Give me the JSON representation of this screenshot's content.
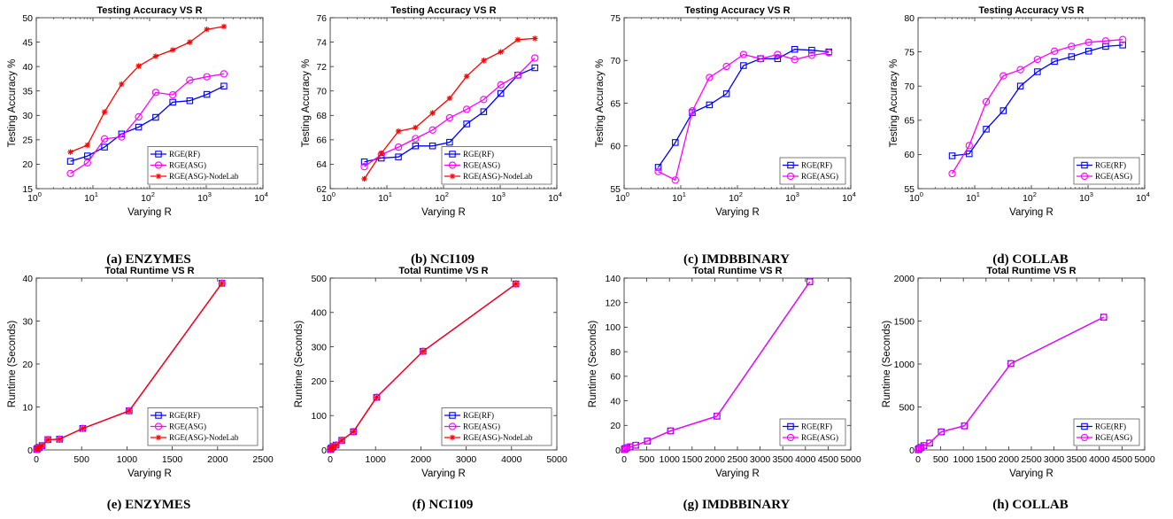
{
  "colors": {
    "rf": "#0000ff",
    "asg": "#ff00ff",
    "nodelab": "#ff0000",
    "axis": "#262626"
  },
  "chart_data": [
    {
      "type": "line",
      "title": "Testing Accuracy VS R",
      "xlabel": "Varying R",
      "ylabel": "Testing Accuracy %",
      "xscale": "log",
      "xlim": [
        1,
        10000
      ],
      "ylim": [
        15,
        50
      ],
      "xticks": [
        1,
        10,
        100,
        1000,
        10000
      ],
      "xtick_labels": [
        "10^0",
        "10^1",
        "10^2",
        "10^3",
        "10^4"
      ],
      "yticks": [
        15,
        20,
        25,
        30,
        35,
        40,
        45,
        50
      ],
      "ytick_labels": [
        "15",
        "20",
        "25",
        "30",
        "35",
        "40",
        "45",
        "50"
      ],
      "legend": "bottom-right",
      "caption": "(a) ENZYMES",
      "series": [
        {
          "name": "RGE(RF)",
          "marker": "square",
          "color": "#0000ff",
          "x": [
            4,
            8,
            16,
            32,
            64,
            128,
            256,
            512,
            1024,
            2048
          ],
          "y": [
            20.6,
            21.7,
            23.5,
            26.2,
            27.6,
            29.6,
            32.7,
            33.0,
            34.3,
            36.0
          ]
        },
        {
          "name": "RGE(ASG)",
          "marker": "circle",
          "color": "#ff00ff",
          "x": [
            4,
            8,
            16,
            32,
            64,
            128,
            256,
            512,
            1024,
            2048
          ],
          "y": [
            18.1,
            20.3,
            25.2,
            25.6,
            29.7,
            34.7,
            34.2,
            37.2,
            37.9,
            38.5
          ]
        },
        {
          "name": "RGE(ASG)-NodeLab",
          "marker": "star",
          "color": "#ff0000",
          "x": [
            4,
            8,
            16,
            32,
            64,
            128,
            256,
            512,
            1024,
            2048
          ],
          "y": [
            22.5,
            23.9,
            30.7,
            36.4,
            40.1,
            42.1,
            43.4,
            45.0,
            47.6,
            48.2
          ]
        }
      ]
    },
    {
      "type": "line",
      "title": "Testing Accuracy VS R",
      "xlabel": "Varying R",
      "ylabel": "Testing Accuracy %",
      "xscale": "log",
      "xlim": [
        1,
        10000
      ],
      "ylim": [
        62,
        76
      ],
      "xticks": [
        1,
        10,
        100,
        1000,
        10000
      ],
      "xtick_labels": [
        "10^0",
        "10^1",
        "10^2",
        "10^3",
        "10^4"
      ],
      "yticks": [
        62,
        64,
        66,
        68,
        70,
        72,
        74,
        76
      ],
      "ytick_labels": [
        "62",
        "64",
        "66",
        "68",
        "70",
        "72",
        "74",
        "76"
      ],
      "legend": "bottom-right",
      "caption": "(b) NCI109",
      "series": [
        {
          "name": "RGE(RF)",
          "marker": "square",
          "color": "#0000ff",
          "x": [
            4,
            8,
            16,
            32,
            64,
            128,
            256,
            512,
            1024,
            2048,
            4096
          ],
          "y": [
            64.2,
            64.5,
            64.6,
            65.5,
            65.5,
            65.8,
            67.3,
            68.3,
            69.8,
            71.3,
            71.9
          ]
        },
        {
          "name": "RGE(ASG)",
          "marker": "circle",
          "color": "#ff00ff",
          "x": [
            4,
            8,
            16,
            32,
            64,
            128,
            256,
            512,
            1024,
            2048,
            4096
          ],
          "y": [
            63.8,
            64.8,
            65.4,
            66.1,
            66.8,
            67.8,
            68.5,
            69.3,
            70.5,
            71.3,
            72.7
          ]
        },
        {
          "name": "RGE(ASG)-NodeLab",
          "marker": "star",
          "color": "#ff0000",
          "x": [
            4,
            8,
            16,
            32,
            64,
            128,
            256,
            512,
            1024,
            2048,
            4096
          ],
          "y": [
            62.8,
            64.9,
            66.7,
            67.0,
            68.2,
            69.4,
            71.2,
            72.5,
            73.2,
            74.2,
            74.3
          ]
        }
      ]
    },
    {
      "type": "line",
      "title": "Testing Accuracy VS R",
      "xlabel": "Varying R",
      "ylabel": "Testing Accuracy %",
      "xscale": "log",
      "xlim": [
        1,
        10000
      ],
      "ylim": [
        55,
        75
      ],
      "xticks": [
        1,
        10,
        100,
        1000,
        10000
      ],
      "xtick_labels": [
        "10^0",
        "10^1",
        "10^2",
        "10^3",
        "10^4"
      ],
      "yticks": [
        55,
        60,
        65,
        70,
        75
      ],
      "ytick_labels": [
        "55",
        "60",
        "65",
        "70",
        "75"
      ],
      "legend": "bottom-right",
      "caption": "(c) IMDBBINARY",
      "series": [
        {
          "name": "RGE(RF)",
          "marker": "square",
          "color": "#0000ff",
          "x": [
            4,
            8,
            16,
            32,
            64,
            128,
            256,
            512,
            1024,
            2048,
            4096
          ],
          "y": [
            57.5,
            60.4,
            63.9,
            64.8,
            66.1,
            69.4,
            70.2,
            70.2,
            71.3,
            71.2,
            71.0
          ]
        },
        {
          "name": "RGE(ASG)",
          "marker": "circle",
          "color": "#ff00ff",
          "x": [
            4,
            8,
            16,
            32,
            64,
            128,
            256,
            512,
            1024,
            2048,
            4096
          ],
          "y": [
            57.0,
            56.0,
            64.1,
            68.0,
            69.3,
            70.7,
            70.2,
            70.7,
            70.1,
            70.6,
            70.9
          ]
        }
      ]
    },
    {
      "type": "line",
      "title": "Testing Accuracy VS R",
      "xlabel": "Varying R",
      "ylabel": "Testing Accuracy %",
      "xscale": "log",
      "xlim": [
        1,
        10000
      ],
      "ylim": [
        55,
        80
      ],
      "xticks": [
        1,
        10,
        100,
        1000,
        10000
      ],
      "xtick_labels": [
        "10^0",
        "10^1",
        "10^2",
        "10^3",
        "10^4"
      ],
      "yticks": [
        55,
        60,
        65,
        70,
        75,
        80
      ],
      "ytick_labels": [
        "55",
        "60",
        "65",
        "70",
        "75",
        "80"
      ],
      "legend": "bottom-right",
      "caption": "(d) COLLAB",
      "series": [
        {
          "name": "RGE(RF)",
          "marker": "square",
          "color": "#0000ff",
          "x": [
            4,
            8,
            16,
            32,
            64,
            128,
            256,
            512,
            1024,
            2048,
            4096
          ],
          "y": [
            59.8,
            60.1,
            63.7,
            66.4,
            70.0,
            72.1,
            73.6,
            74.3,
            75.1,
            75.8,
            76.0
          ]
        },
        {
          "name": "RGE(ASG)",
          "marker": "circle",
          "color": "#ff00ff",
          "x": [
            4,
            8,
            16,
            32,
            64,
            128,
            256,
            512,
            1024,
            2048,
            4096
          ],
          "y": [
            57.2,
            61.3,
            67.7,
            71.5,
            72.4,
            73.9,
            75.1,
            75.8,
            76.4,
            76.6,
            76.8
          ]
        }
      ]
    },
    {
      "type": "line",
      "title": "Total Runtime VS R",
      "xlabel": "Varying R",
      "ylabel": "Runtime (Seconds)",
      "xscale": "linear",
      "xlim": [
        0,
        2500
      ],
      "ylim": [
        0,
        40
      ],
      "xticks": [
        0,
        500,
        1000,
        1500,
        2000,
        2500
      ],
      "xtick_labels": [
        "0",
        "500",
        "1000",
        "1500",
        "2000",
        "2500"
      ],
      "yticks": [
        0,
        10,
        20,
        30,
        40
      ],
      "ytick_labels": [
        "0",
        "10",
        "20",
        "30",
        "40"
      ],
      "legend": "bottom-right",
      "caption": "(e) ENZYMES",
      "series": [
        {
          "name": "RGE(RF)",
          "marker": "square",
          "color": "#0000ff",
          "x": [
            4,
            8,
            16,
            32,
            64,
            128,
            256,
            512,
            1024,
            2048
          ],
          "y": [
            0.1,
            0.2,
            0.4,
            0.6,
            1.0,
            2.4,
            2.5,
            5.0,
            9.1,
            38.8
          ]
        },
        {
          "name": "RGE(ASG)",
          "marker": "circle",
          "color": "#ff00ff",
          "x": [
            4,
            8,
            16,
            32,
            64,
            128,
            256,
            512,
            1024,
            2048
          ],
          "y": [
            0.1,
            0.2,
            0.4,
            0.6,
            1.0,
            2.4,
            2.5,
            5.0,
            9.1,
            38.8
          ]
        },
        {
          "name": "RGE(ASG)-NodeLab",
          "marker": "star",
          "color": "#ff0000",
          "x": [
            4,
            8,
            16,
            32,
            64,
            128,
            256,
            512,
            1024,
            2048
          ],
          "y": [
            0.1,
            0.2,
            0.4,
            0.6,
            1.0,
            2.4,
            2.5,
            5.0,
            9.1,
            38.8
          ]
        }
      ]
    },
    {
      "type": "line",
      "title": "Total Runtime VS R",
      "xlabel": "Varying R",
      "ylabel": "Runtime (Seconds)",
      "xscale": "linear",
      "xlim": [
        0,
        5000
      ],
      "ylim": [
        0,
        500
      ],
      "xticks": [
        0,
        1000,
        2000,
        3000,
        4000,
        5000
      ],
      "xtick_labels": [
        "0",
        "1000",
        "2000",
        "3000",
        "4000",
        "5000"
      ],
      "yticks": [
        0,
        100,
        200,
        300,
        400,
        500
      ],
      "ytick_labels": [
        "0",
        "100",
        "200",
        "300",
        "400",
        "500"
      ],
      "legend": "bottom-right",
      "caption": "(f) NCI109",
      "series": [
        {
          "name": "RGE(RF)",
          "marker": "square",
          "color": "#0000ff",
          "x": [
            4,
            8,
            16,
            32,
            64,
            128,
            256,
            512,
            1024,
            2048,
            4096
          ],
          "y": [
            1,
            2,
            4,
            6,
            10,
            14,
            28,
            53,
            153,
            287,
            483
          ]
        },
        {
          "name": "RGE(ASG)",
          "marker": "circle",
          "color": "#ff00ff",
          "x": [
            4,
            8,
            16,
            32,
            64,
            128,
            256,
            512,
            1024,
            2048,
            4096
          ],
          "y": [
            1,
            2,
            4,
            6,
            10,
            14,
            28,
            53,
            153,
            287,
            483
          ]
        },
        {
          "name": "RGE(ASG)-NodeLab",
          "marker": "star",
          "color": "#ff0000",
          "x": [
            4,
            8,
            16,
            32,
            64,
            128,
            256,
            512,
            1024,
            2048,
            4096
          ],
          "y": [
            1,
            2,
            4,
            6,
            10,
            14,
            28,
            53,
            153,
            287,
            483
          ]
        }
      ]
    },
    {
      "type": "line",
      "title": "Total Runtime VS R",
      "xlabel": "Varying R",
      "ylabel": "Runtime (Seconds)",
      "xscale": "linear",
      "xlim": [
        0,
        5000
      ],
      "ylim": [
        0,
        140
      ],
      "xticks": [
        0,
        500,
        1000,
        1500,
        2000,
        2500,
        3000,
        3500,
        4000,
        4500,
        5000
      ],
      "xtick_labels": [
        "0",
        "500",
        "1000",
        "1500",
        "2000",
        "2500",
        "3000",
        "3500",
        "4000",
        "4500",
        "5000"
      ],
      "yticks": [
        0,
        20,
        40,
        60,
        80,
        100,
        120,
        140
      ],
      "ytick_labels": [
        "0",
        "20",
        "40",
        "60",
        "80",
        "100",
        "120",
        "140"
      ],
      "legend": "bottom-right",
      "caption": "(g) IMDBBINARY",
      "series": [
        {
          "name": "RGE(RF)",
          "marker": "square",
          "color": "#0000ff",
          "x": [
            4,
            8,
            16,
            32,
            64,
            128,
            256,
            512,
            1024,
            2048,
            4096
          ],
          "y": [
            0.3,
            0.5,
            0.8,
            1.2,
            1.8,
            2.5,
            3.8,
            7.2,
            15.5,
            27.5,
            137.0
          ]
        },
        {
          "name": "RGE(ASG)",
          "marker": "circle",
          "color": "#ff00ff",
          "x": [
            4,
            8,
            16,
            32,
            64,
            128,
            256,
            512,
            1024,
            2048,
            4096
          ],
          "y": [
            0.3,
            0.5,
            0.8,
            1.2,
            1.8,
            2.5,
            3.8,
            7.2,
            15.5,
            27.5,
            137.0
          ]
        }
      ]
    },
    {
      "type": "line",
      "title": "Total Runtime VS R",
      "xlabel": "Varying R",
      "ylabel": "Runtime (Seconds)",
      "xscale": "linear",
      "xlim": [
        0,
        5000
      ],
      "ylim": [
        0,
        2000
      ],
      "xticks": [
        0,
        500,
        1000,
        1500,
        2000,
        2500,
        3000,
        3500,
        4000,
        4500,
        5000
      ],
      "xtick_labels": [
        "0",
        "500",
        "1000",
        "1500",
        "2000",
        "2500",
        "3000",
        "3500",
        "4000",
        "4500",
        "5000"
      ],
      "yticks": [
        0,
        500,
        1000,
        1500,
        2000
      ],
      "ytick_labels": [
        "0",
        "500",
        "1000",
        "1500",
        "2000"
      ],
      "legend": "bottom-right",
      "caption": "(h) COLLAB",
      "series": [
        {
          "name": "RGE(RF)",
          "marker": "square",
          "color": "#0000ff",
          "x": [
            4,
            8,
            16,
            32,
            64,
            128,
            256,
            512,
            1024,
            2048,
            4096
          ],
          "y": [
            2,
            5,
            10,
            18,
            30,
            50,
            80,
            210,
            280,
            1005,
            1545
          ]
        },
        {
          "name": "RGE(ASG)",
          "marker": "circle",
          "color": "#ff00ff",
          "x": [
            4,
            8,
            16,
            32,
            64,
            128,
            256,
            512,
            1024,
            2048,
            4096
          ],
          "y": [
            2,
            5,
            10,
            18,
            30,
            50,
            80,
            210,
            280,
            1005,
            1545
          ]
        }
      ]
    }
  ]
}
